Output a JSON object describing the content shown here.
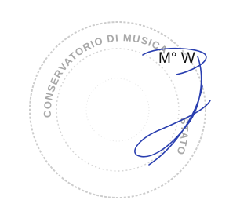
{
  "stamp": {
    "top_text": "CONSERVATORIO DI MUSICA",
    "side_text": "STATO"
  },
  "signature": {
    "name_text": "M° W"
  }
}
